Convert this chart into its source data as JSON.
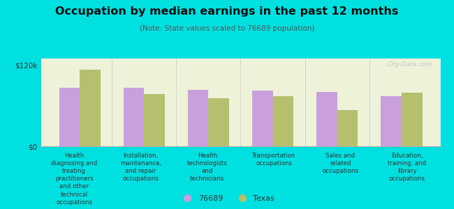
{
  "title": "Occupation by median earnings in the past 12 months",
  "subtitle": "(Note: State values scaled to 76689 population)",
  "background_color": "#00e0e0",
  "plot_bg_color": "#eef2d8",
  "categories": [
    "Health\ndiagnosing and\ntreating\npractitioners\nand other\ntechnical\noccupations",
    "Installation,\nmaintenance,\nand repair\noccupations",
    "Health\ntechnologists\nand\ntechnicians",
    "Transportation\noccupations",
    "Sales and\nrelated\noccupations",
    "Education,\ntraining, and\nlibrary\noccupations"
  ],
  "values_76689": [
    87000,
    87000,
    84000,
    83000,
    80000,
    74000
  ],
  "values_texas": [
    113000,
    77000,
    71000,
    74000,
    54000,
    79000
  ],
  "color_76689": "#c9a0dc",
  "color_texas": "#b5bf6e",
  "ylim": [
    0,
    130000
  ],
  "yticks": [
    0,
    120000
  ],
  "ytick_labels": [
    "$0",
    "$120k"
  ],
  "bar_width": 0.32,
  "legend_labels": [
    "76689",
    "Texas"
  ],
  "watermark": "City-Data.com"
}
